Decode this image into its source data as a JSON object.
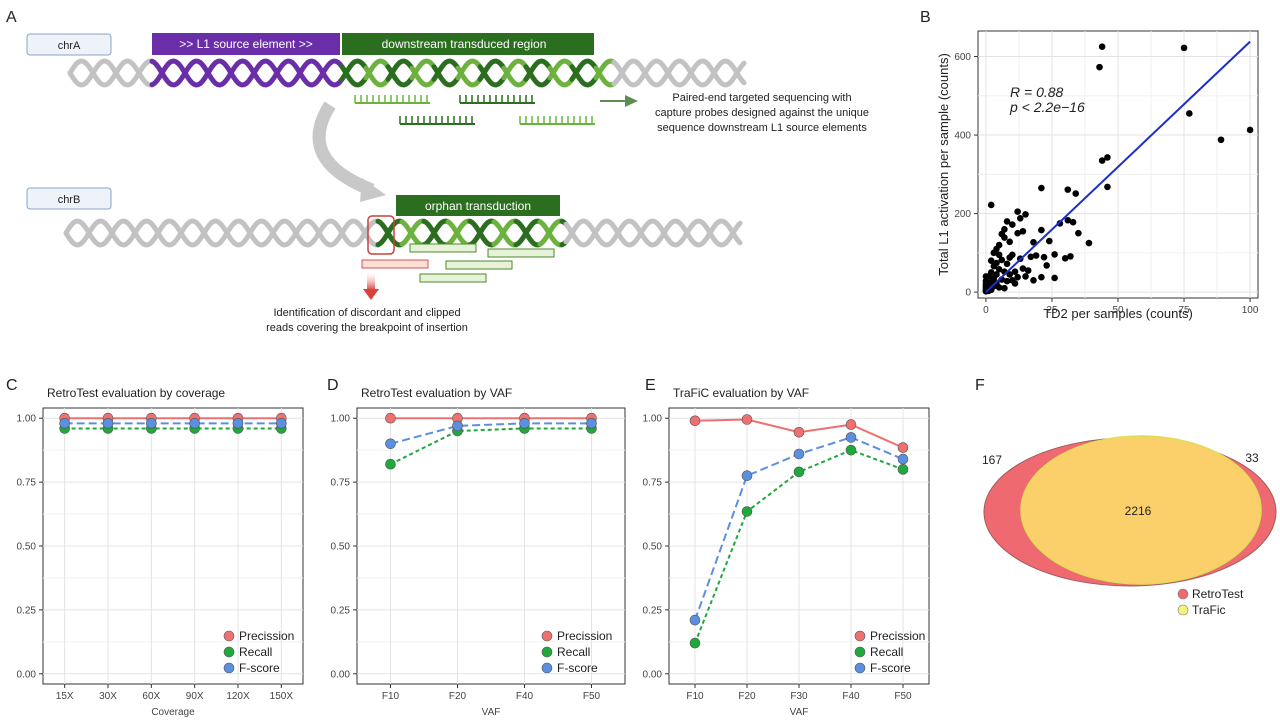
{
  "panels": {
    "a": "A",
    "b": "B",
    "c": "C",
    "d": "D",
    "e": "E",
    "f": "F"
  },
  "diagram": {
    "chrA": "chrA",
    "chrB": "chrB",
    "l1_source": ">> L1 source element >>",
    "downstream": "downstream transduced region",
    "orphan": "orphan transduction",
    "probe_note": [
      "Paired-end targeted sequencing with",
      "capture probes designed against the unique",
      "sequence downstream L1 source elements"
    ],
    "reads_note": [
      "Identification of discordant and clipped",
      "reads covering the breakpoint of insertion"
    ],
    "colors": {
      "purple": "#6a2fa8",
      "dark_green": "#2b6e1f",
      "light_green": "#6db23f",
      "grey": "#c2c2c2",
      "red": "#d9534f"
    }
  },
  "legend_labels": {
    "precision": "Precission",
    "recall": "Recall",
    "fscore": "F-score"
  },
  "series_colors": {
    "precision": "#f07070",
    "recall": "#1fa83c",
    "fscore": "#5b8fe0"
  },
  "chart_data": [
    {
      "id": "B",
      "type": "scatter",
      "xlabel": "TD2 per samples (counts)",
      "ylabel": "Total L1 activation per sample (counts)",
      "xlim": [
        -3,
        103
      ],
      "ylim": [
        -15,
        665
      ],
      "xticks": [
        0,
        25,
        50,
        75,
        100
      ],
      "yticks": [
        0,
        200,
        400,
        600
      ],
      "grid": true,
      "annotation": {
        "r": "R = 0.88",
        "p": "p < 2.2e−16"
      },
      "fit_line": {
        "x": [
          0,
          100
        ],
        "y": [
          0,
          638
        ]
      },
      "points": [
        [
          44,
          625
        ],
        [
          75,
          622
        ],
        [
          43,
          573
        ],
        [
          77,
          455
        ],
        [
          89,
          388
        ],
        [
          100,
          413
        ],
        [
          46,
          343
        ],
        [
          44,
          335
        ],
        [
          46,
          268
        ],
        [
          31,
          261
        ],
        [
          34,
          251
        ],
        [
          31,
          183
        ],
        [
          33,
          178
        ],
        [
          35,
          150
        ],
        [
          39,
          125
        ],
        [
          21,
          265
        ],
        [
          28,
          175
        ],
        [
          21,
          158
        ],
        [
          24,
          130
        ],
        [
          32,
          91
        ],
        [
          30,
          86
        ],
        [
          26,
          96
        ],
        [
          22,
          89
        ],
        [
          15,
          198
        ],
        [
          12,
          205
        ],
        [
          13,
          188
        ],
        [
          14,
          155
        ],
        [
          12,
          150
        ],
        [
          18,
          127
        ],
        [
          17,
          90
        ],
        [
          13,
          85
        ],
        [
          19,
          93
        ],
        [
          23,
          68
        ],
        [
          21,
          38
        ],
        [
          26,
          36
        ],
        [
          11,
          52
        ],
        [
          2,
          222
        ],
        [
          6,
          148
        ],
        [
          7,
          139
        ],
        [
          8,
          180
        ],
        [
          5,
          120
        ],
        [
          4,
          110
        ],
        [
          3,
          100
        ],
        [
          9,
          128
        ],
        [
          10,
          95
        ],
        [
          6,
          82
        ],
        [
          8,
          72
        ],
        [
          3,
          66
        ],
        [
          5,
          58
        ],
        [
          7,
          52
        ],
        [
          2,
          50
        ],
        [
          4,
          45
        ],
        [
          9,
          45
        ],
        [
          1,
          40
        ],
        [
          3,
          35
        ],
        [
          6,
          32
        ],
        [
          8,
          28
        ],
        [
          2,
          25
        ],
        [
          4,
          22
        ],
        [
          1,
          18
        ],
        [
          3,
          15
        ],
        [
          5,
          12
        ],
        [
          7,
          10
        ],
        [
          1,
          8
        ],
        [
          2,
          6
        ],
        [
          0,
          5
        ],
        [
          0,
          10
        ],
        [
          0,
          15
        ],
        [
          0,
          20
        ],
        [
          0,
          28
        ],
        [
          1,
          3
        ],
        [
          0,
          2
        ],
        [
          10,
          30
        ],
        [
          12,
          38
        ],
        [
          11,
          22
        ],
        [
          14,
          60
        ],
        [
          15,
          40
        ],
        [
          16,
          55
        ],
        [
          18,
          30
        ],
        [
          9,
          88
        ],
        [
          5,
          95
        ],
        [
          7,
          160
        ],
        [
          10,
          172
        ],
        [
          2,
          80
        ],
        [
          4,
          74
        ],
        [
          0,
          40
        ]
      ]
    },
    {
      "id": "C",
      "type": "line",
      "title": "RetroTest evaluation by coverage",
      "xlabel": "Coverage",
      "categories": [
        "15X",
        "30X",
        "60X",
        "90X",
        "120X",
        "150X"
      ],
      "ylim": [
        -0.04,
        1.04
      ],
      "yticks": [
        0,
        0.25,
        0.5,
        0.75,
        1
      ],
      "ytick_labels": [
        "0.00",
        "0.25",
        "0.50",
        "0.75",
        "1.00"
      ],
      "series": [
        {
          "name": "Precission",
          "values": [
            1.0,
            1.0,
            1.0,
            1.0,
            1.0,
            1.0
          ]
        },
        {
          "name": "Recall",
          "values": [
            0.96,
            0.96,
            0.96,
            0.96,
            0.96,
            0.96
          ]
        },
        {
          "name": "F-score",
          "values": [
            0.98,
            0.98,
            0.98,
            0.98,
            0.98,
            0.98
          ]
        }
      ]
    },
    {
      "id": "D",
      "type": "line",
      "title": "RetroTest evaluation by VAF",
      "xlabel": "VAF",
      "categories": [
        "F10",
        "F20",
        "F40",
        "F50"
      ],
      "ylim": [
        -0.04,
        1.04
      ],
      "yticks": [
        0,
        0.25,
        0.5,
        0.75,
        1
      ],
      "ytick_labels": [
        "0.00",
        "0.25",
        "0.50",
        "0.75",
        "1.00"
      ],
      "series": [
        {
          "name": "Precission",
          "values": [
            1.0,
            1.0,
            1.0,
            1.0
          ]
        },
        {
          "name": "Recall",
          "values": [
            0.82,
            0.95,
            0.96,
            0.96
          ]
        },
        {
          "name": "F-score",
          "values": [
            0.9,
            0.97,
            0.98,
            0.98
          ]
        }
      ]
    },
    {
      "id": "E",
      "type": "line",
      "title": "TraFiC evaluation by VAF",
      "xlabel": "VAF",
      "categories": [
        "F10",
        "F20",
        "F30",
        "F40",
        "F50"
      ],
      "ylim": [
        -0.04,
        1.04
      ],
      "yticks": [
        0,
        0.25,
        0.5,
        0.75,
        1
      ],
      "ytick_labels": [
        "0.00",
        "0.25",
        "0.50",
        "0.75",
        "1.00"
      ],
      "series": [
        {
          "name": "Precission",
          "values": [
            0.99,
            0.995,
            0.945,
            0.975,
            0.885
          ]
        },
        {
          "name": "Recall",
          "values": [
            0.12,
            0.635,
            0.79,
            0.875,
            0.8
          ]
        },
        {
          "name": "F-score",
          "values": [
            0.21,
            0.775,
            0.86,
            0.925,
            0.84
          ]
        }
      ]
    }
  ],
  "venn": {
    "left_only": "167",
    "shared": "2216",
    "right_only": "33",
    "legend": [
      "RetroTest",
      "TraFic"
    ],
    "colors": {
      "retrotest": "#ee6a70",
      "trafic": "#fbd06a",
      "trafic_edge": "#e8e860"
    }
  }
}
